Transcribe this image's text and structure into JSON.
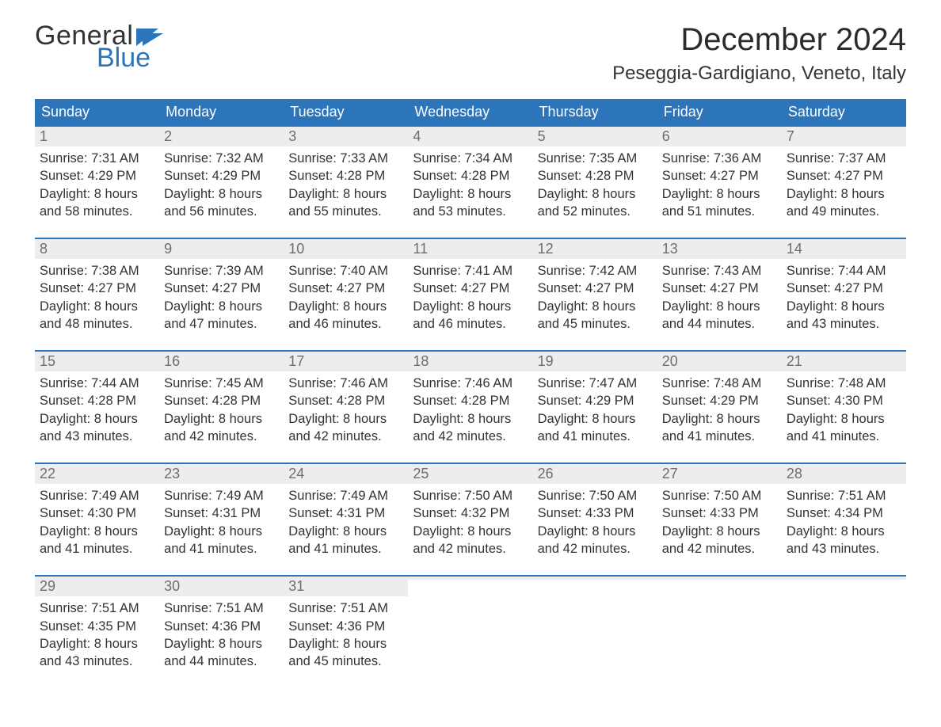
{
  "brand": {
    "word1": "General",
    "word2": "Blue",
    "word1_color": "#333333",
    "word2_color": "#2d75bb"
  },
  "title": "December 2024",
  "location": "Peseggia-Gardigiano, Veneto, Italy",
  "colors": {
    "header_bg": "#2d75bb",
    "header_text": "#ffffff",
    "daynum_bg": "#ededed",
    "daynum_text": "#6e6e6e",
    "body_text": "#333333",
    "row_divider": "#2d75bb",
    "page_bg": "#ffffff"
  },
  "typography": {
    "title_fontsize": 40,
    "location_fontsize": 24,
    "dayheader_fontsize": 18,
    "daynum_fontsize": 18,
    "body_fontsize": 16.5,
    "font_family": "Arial"
  },
  "layout": {
    "columns": 7,
    "rows": 5,
    "aspect_w": 1188,
    "aspect_h": 918
  },
  "day_headers": [
    "Sunday",
    "Monday",
    "Tuesday",
    "Wednesday",
    "Thursday",
    "Friday",
    "Saturday"
  ],
  "weeks": [
    [
      {
        "num": "1",
        "sunrise": "Sunrise: 7:31 AM",
        "sunset": "Sunset: 4:29 PM",
        "daylight1": "Daylight: 8 hours",
        "daylight2": "and 58 minutes."
      },
      {
        "num": "2",
        "sunrise": "Sunrise: 7:32 AM",
        "sunset": "Sunset: 4:29 PM",
        "daylight1": "Daylight: 8 hours",
        "daylight2": "and 56 minutes."
      },
      {
        "num": "3",
        "sunrise": "Sunrise: 7:33 AM",
        "sunset": "Sunset: 4:28 PM",
        "daylight1": "Daylight: 8 hours",
        "daylight2": "and 55 minutes."
      },
      {
        "num": "4",
        "sunrise": "Sunrise: 7:34 AM",
        "sunset": "Sunset: 4:28 PM",
        "daylight1": "Daylight: 8 hours",
        "daylight2": "and 53 minutes."
      },
      {
        "num": "5",
        "sunrise": "Sunrise: 7:35 AM",
        "sunset": "Sunset: 4:28 PM",
        "daylight1": "Daylight: 8 hours",
        "daylight2": "and 52 minutes."
      },
      {
        "num": "6",
        "sunrise": "Sunrise: 7:36 AM",
        "sunset": "Sunset: 4:27 PM",
        "daylight1": "Daylight: 8 hours",
        "daylight2": "and 51 minutes."
      },
      {
        "num": "7",
        "sunrise": "Sunrise: 7:37 AM",
        "sunset": "Sunset: 4:27 PM",
        "daylight1": "Daylight: 8 hours",
        "daylight2": "and 49 minutes."
      }
    ],
    [
      {
        "num": "8",
        "sunrise": "Sunrise: 7:38 AM",
        "sunset": "Sunset: 4:27 PM",
        "daylight1": "Daylight: 8 hours",
        "daylight2": "and 48 minutes."
      },
      {
        "num": "9",
        "sunrise": "Sunrise: 7:39 AM",
        "sunset": "Sunset: 4:27 PM",
        "daylight1": "Daylight: 8 hours",
        "daylight2": "and 47 minutes."
      },
      {
        "num": "10",
        "sunrise": "Sunrise: 7:40 AM",
        "sunset": "Sunset: 4:27 PM",
        "daylight1": "Daylight: 8 hours",
        "daylight2": "and 46 minutes."
      },
      {
        "num": "11",
        "sunrise": "Sunrise: 7:41 AM",
        "sunset": "Sunset: 4:27 PM",
        "daylight1": "Daylight: 8 hours",
        "daylight2": "and 46 minutes."
      },
      {
        "num": "12",
        "sunrise": "Sunrise: 7:42 AM",
        "sunset": "Sunset: 4:27 PM",
        "daylight1": "Daylight: 8 hours",
        "daylight2": "and 45 minutes."
      },
      {
        "num": "13",
        "sunrise": "Sunrise: 7:43 AM",
        "sunset": "Sunset: 4:27 PM",
        "daylight1": "Daylight: 8 hours",
        "daylight2": "and 44 minutes."
      },
      {
        "num": "14",
        "sunrise": "Sunrise: 7:44 AM",
        "sunset": "Sunset: 4:27 PM",
        "daylight1": "Daylight: 8 hours",
        "daylight2": "and 43 minutes."
      }
    ],
    [
      {
        "num": "15",
        "sunrise": "Sunrise: 7:44 AM",
        "sunset": "Sunset: 4:28 PM",
        "daylight1": "Daylight: 8 hours",
        "daylight2": "and 43 minutes."
      },
      {
        "num": "16",
        "sunrise": "Sunrise: 7:45 AM",
        "sunset": "Sunset: 4:28 PM",
        "daylight1": "Daylight: 8 hours",
        "daylight2": "and 42 minutes."
      },
      {
        "num": "17",
        "sunrise": "Sunrise: 7:46 AM",
        "sunset": "Sunset: 4:28 PM",
        "daylight1": "Daylight: 8 hours",
        "daylight2": "and 42 minutes."
      },
      {
        "num": "18",
        "sunrise": "Sunrise: 7:46 AM",
        "sunset": "Sunset: 4:28 PM",
        "daylight1": "Daylight: 8 hours",
        "daylight2": "and 42 minutes."
      },
      {
        "num": "19",
        "sunrise": "Sunrise: 7:47 AM",
        "sunset": "Sunset: 4:29 PM",
        "daylight1": "Daylight: 8 hours",
        "daylight2": "and 41 minutes."
      },
      {
        "num": "20",
        "sunrise": "Sunrise: 7:48 AM",
        "sunset": "Sunset: 4:29 PM",
        "daylight1": "Daylight: 8 hours",
        "daylight2": "and 41 minutes."
      },
      {
        "num": "21",
        "sunrise": "Sunrise: 7:48 AM",
        "sunset": "Sunset: 4:30 PM",
        "daylight1": "Daylight: 8 hours",
        "daylight2": "and 41 minutes."
      }
    ],
    [
      {
        "num": "22",
        "sunrise": "Sunrise: 7:49 AM",
        "sunset": "Sunset: 4:30 PM",
        "daylight1": "Daylight: 8 hours",
        "daylight2": "and 41 minutes."
      },
      {
        "num": "23",
        "sunrise": "Sunrise: 7:49 AM",
        "sunset": "Sunset: 4:31 PM",
        "daylight1": "Daylight: 8 hours",
        "daylight2": "and 41 minutes."
      },
      {
        "num": "24",
        "sunrise": "Sunrise: 7:49 AM",
        "sunset": "Sunset: 4:31 PM",
        "daylight1": "Daylight: 8 hours",
        "daylight2": "and 41 minutes."
      },
      {
        "num": "25",
        "sunrise": "Sunrise: 7:50 AM",
        "sunset": "Sunset: 4:32 PM",
        "daylight1": "Daylight: 8 hours",
        "daylight2": "and 42 minutes."
      },
      {
        "num": "26",
        "sunrise": "Sunrise: 7:50 AM",
        "sunset": "Sunset: 4:33 PM",
        "daylight1": "Daylight: 8 hours",
        "daylight2": "and 42 minutes."
      },
      {
        "num": "27",
        "sunrise": "Sunrise: 7:50 AM",
        "sunset": "Sunset: 4:33 PM",
        "daylight1": "Daylight: 8 hours",
        "daylight2": "and 42 minutes."
      },
      {
        "num": "28",
        "sunrise": "Sunrise: 7:51 AM",
        "sunset": "Sunset: 4:34 PM",
        "daylight1": "Daylight: 8 hours",
        "daylight2": "and 43 minutes."
      }
    ],
    [
      {
        "num": "29",
        "sunrise": "Sunrise: 7:51 AM",
        "sunset": "Sunset: 4:35 PM",
        "daylight1": "Daylight: 8 hours",
        "daylight2": "and 43 minutes."
      },
      {
        "num": "30",
        "sunrise": "Sunrise: 7:51 AM",
        "sunset": "Sunset: 4:36 PM",
        "daylight1": "Daylight: 8 hours",
        "daylight2": "and 44 minutes."
      },
      {
        "num": "31",
        "sunrise": "Sunrise: 7:51 AM",
        "sunset": "Sunset: 4:36 PM",
        "daylight1": "Daylight: 8 hours",
        "daylight2": "and 45 minutes."
      },
      {
        "empty": true
      },
      {
        "empty": true
      },
      {
        "empty": true
      },
      {
        "empty": true
      }
    ]
  ]
}
